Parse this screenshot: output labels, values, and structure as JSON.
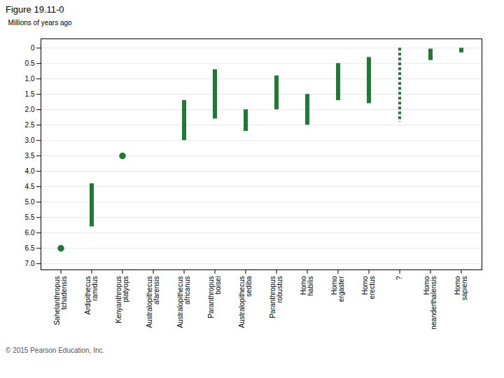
{
  "chart_data": {
    "type": "range",
    "title": "Figure 19.11-0",
    "ylabel": "Millions of years ago",
    "caption": "© 2015 Pearson Education, Inc.",
    "ylim": [
      7.2,
      -0.3
    ],
    "yticks": [
      0,
      0.5,
      {
        "value": 1.0,
        "label": "1.0"
      },
      1.5,
      {
        "value": 2.0,
        "label": "2.0"
      },
      2.5,
      {
        "value": 3.0,
        "label": "3.0"
      },
      3.5,
      {
        "value": 4.0,
        "label": "4.0"
      },
      4.5,
      {
        "value": 5.0,
        "label": "5.0"
      },
      5.5,
      {
        "value": 6.0,
        "label": "6.0"
      },
      6.5,
      {
        "value": 7.0,
        "label": "7.0"
      }
    ],
    "grid": true,
    "categories": [
      "Sahelanthropus\ntchadensis",
      "Ardipithecus\nramidus",
      "Kenyanthropus\nplatyops",
      "Australopithecus\nafarensis",
      "Australopithecus\nafricanus",
      "Paranthropus\nboisei",
      "Australopithecus\nsediba",
      "Paranthropus\nrobustus",
      "Homo\nhabilis",
      "Homo\nergaster",
      "Homo\nerectus",
      "?",
      "Homo\nneanderthalensis",
      "Homo\nsapiens"
    ],
    "series": [
      {
        "type": "range",
        "color": "#1e7a34",
        "line_style": "solid",
        "values": [
          null,
          [
            4.4,
            5.8
          ],
          null,
          null,
          [
            1.7,
            3.0
          ],
          [
            0.7,
            2.3
          ],
          [
            2.0,
            2.7
          ],
          [
            0.9,
            2.0
          ],
          [
            1.5,
            2.5
          ],
          [
            0.5,
            1.7
          ],
          [
            0.3,
            1.8
          ],
          null,
          [
            0.03,
            0.4
          ],
          [
            0.0,
            0.15
          ]
        ]
      },
      {
        "type": "range",
        "color": "#1e7a34",
        "line_style": "dashed",
        "values": [
          null,
          null,
          null,
          null,
          null,
          null,
          null,
          null,
          null,
          null,
          null,
          [
            0.0,
            2.4
          ],
          null,
          null
        ]
      },
      {
        "type": "dot",
        "color": "#1e7a34",
        "marker": "circle",
        "values": [
          6.5,
          null,
          3.5,
          null,
          null,
          null,
          null,
          null,
          null,
          null,
          null,
          null,
          null,
          null
        ]
      }
    ]
  }
}
